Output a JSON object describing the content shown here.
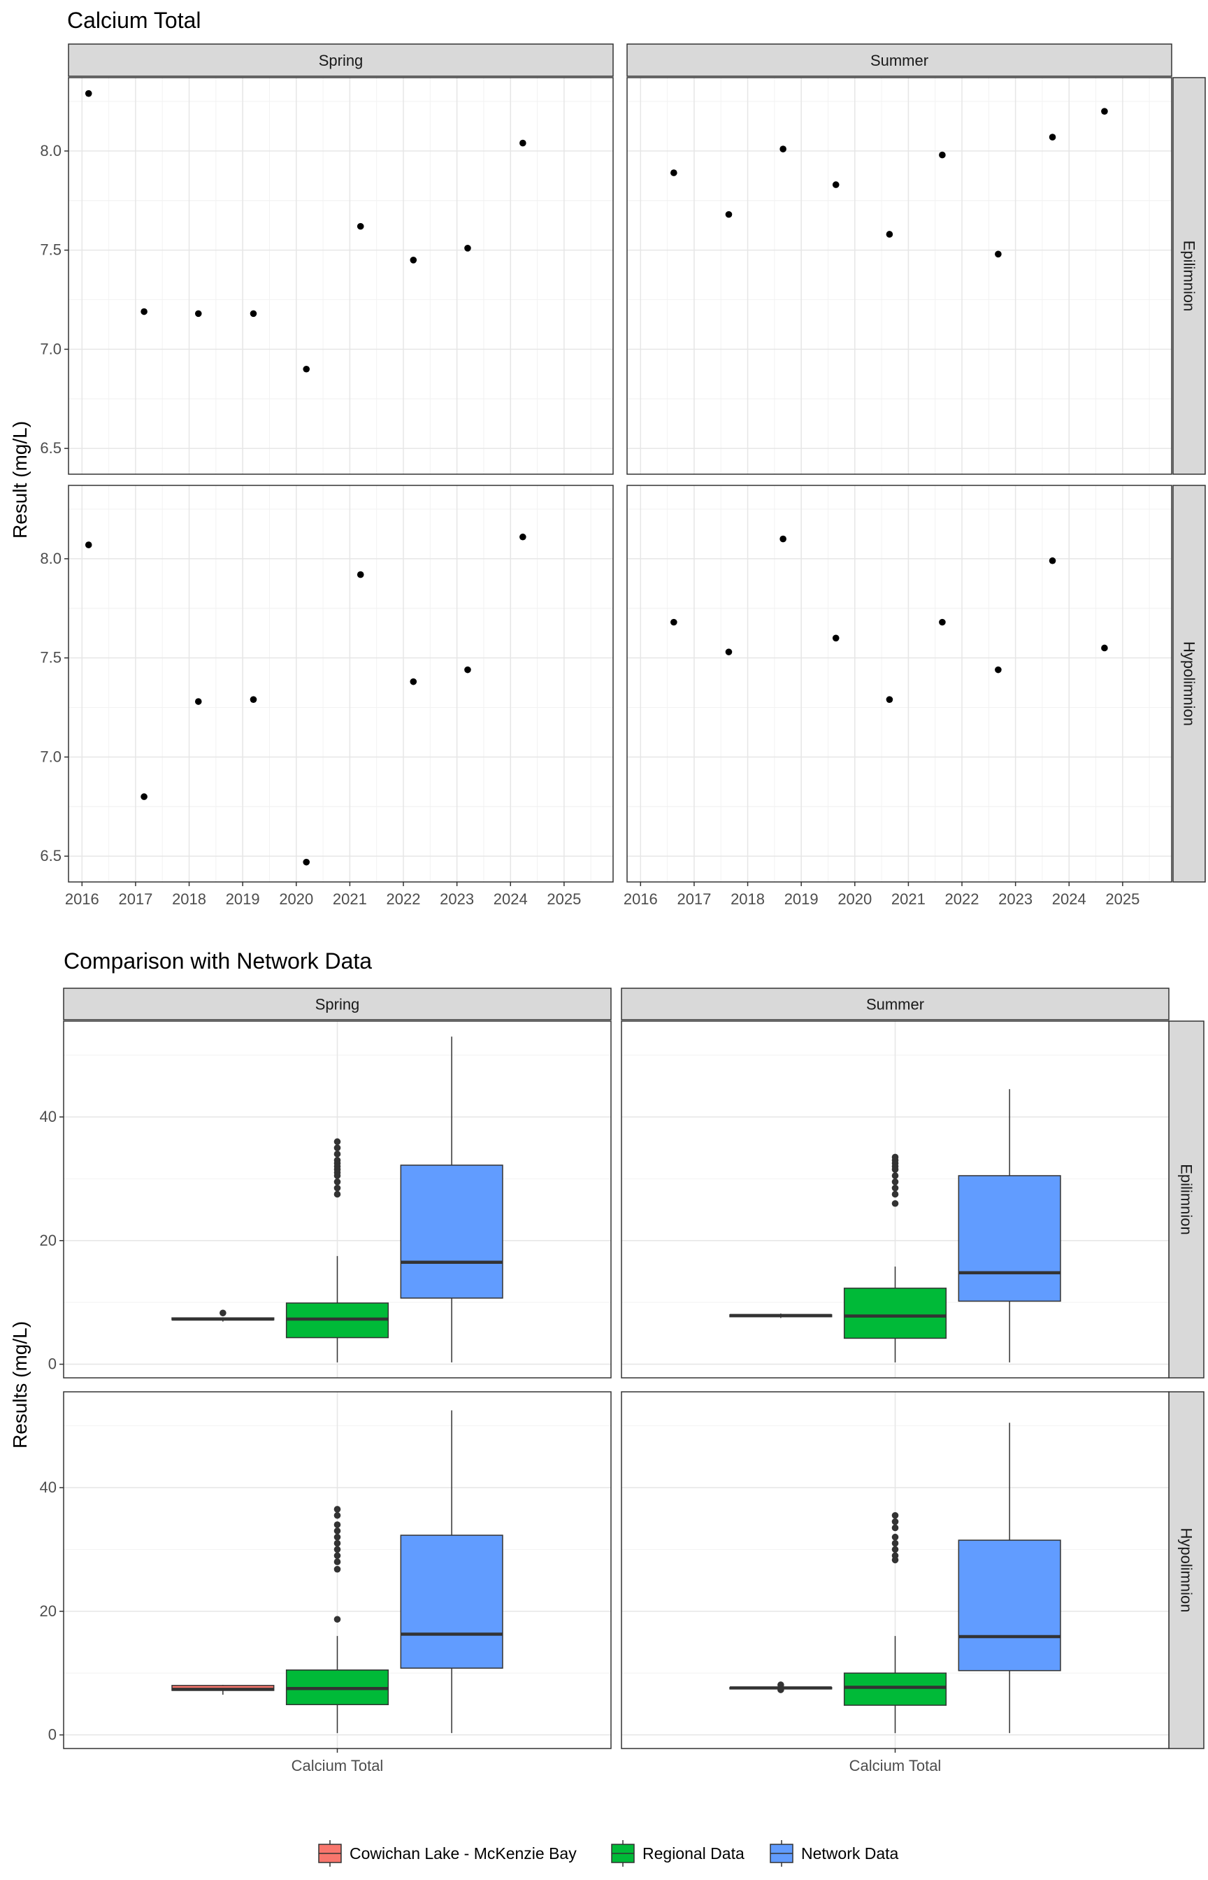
{
  "chart_data": [
    {
      "type": "scatter",
      "title": "Calcium Total",
      "xlabel": "",
      "ylabel": "Result (mg/L)",
      "facet_columns": [
        "Spring",
        "Summer"
      ],
      "facet_rows": [
        "Epilimnion",
        "Hypolimnion"
      ],
      "x_ticks": [
        "2016",
        "2017",
        "2018",
        "2019",
        "2020",
        "2021",
        "2022",
        "2023",
        "2024",
        "2025"
      ],
      "y_ticks": [
        "6.5",
        "7.0",
        "7.5",
        "8.0"
      ],
      "xlim": [
        "2015-10-01",
        "2025-12-01"
      ],
      "ylim": [
        6.37,
        8.37
      ],
      "grid": true,
      "panels": [
        {
          "column": "Spring",
          "row": "Epilimnion",
          "points": [
            {
              "x": "2016-02-15",
              "y": 8.29
            },
            {
              "x": "2017-02-28",
              "y": 7.19
            },
            {
              "x": "2018-03-05",
              "y": 7.18
            },
            {
              "x": "2019-03-15",
              "y": 7.18
            },
            {
              "x": "2020-03-10",
              "y": 6.9
            },
            {
              "x": "2021-03-15",
              "y": 7.62
            },
            {
              "x": "2022-03-10",
              "y": 7.45
            },
            {
              "x": "2023-03-15",
              "y": 7.51
            },
            {
              "x": "2024-03-25",
              "y": 8.04
            }
          ]
        },
        {
          "column": "Summer",
          "row": "Epilimnion",
          "points": [
            {
              "x": "2016-08-15",
              "y": 7.89
            },
            {
              "x": "2017-08-25",
              "y": 7.68
            },
            {
              "x": "2018-08-30",
              "y": 8.01
            },
            {
              "x": "2019-08-25",
              "y": 7.83
            },
            {
              "x": "2020-08-25",
              "y": 7.58
            },
            {
              "x": "2021-08-20",
              "y": 7.98
            },
            {
              "x": "2022-09-05",
              "y": 7.48
            },
            {
              "x": "2023-09-10",
              "y": 8.07
            },
            {
              "x": "2024-08-30",
              "y": 8.2
            }
          ]
        },
        {
          "column": "Spring",
          "row": "Hypolimnion",
          "points": [
            {
              "x": "2016-02-15",
              "y": 8.07
            },
            {
              "x": "2017-02-28",
              "y": 6.8
            },
            {
              "x": "2018-03-05",
              "y": 7.28
            },
            {
              "x": "2019-03-15",
              "y": 7.29
            },
            {
              "x": "2020-03-10",
              "y": 6.47
            },
            {
              "x": "2021-03-15",
              "y": 7.92
            },
            {
              "x": "2022-03-10",
              "y": 7.38
            },
            {
              "x": "2023-03-15",
              "y": 7.44
            },
            {
              "x": "2024-03-25",
              "y": 8.11
            }
          ]
        },
        {
          "column": "Summer",
          "row": "Hypolimnion",
          "points": [
            {
              "x": "2016-08-15",
              "y": 7.68
            },
            {
              "x": "2017-08-25",
              "y": 7.53
            },
            {
              "x": "2018-08-30",
              "y": 8.1
            },
            {
              "x": "2019-08-25",
              "y": 7.6
            },
            {
              "x": "2020-08-25",
              "y": 7.29
            },
            {
              "x": "2021-08-20",
              "y": 7.68
            },
            {
              "x": "2022-09-05",
              "y": 7.44
            },
            {
              "x": "2023-09-10",
              "y": 7.99
            },
            {
              "x": "2024-08-30",
              "y": 7.55
            }
          ]
        }
      ]
    },
    {
      "type": "box",
      "title": "Comparison with Network Data",
      "xlabel": "",
      "ylabel": "Results (mg/L)",
      "facet_columns": [
        "Spring",
        "Summer"
      ],
      "facet_rows": [
        "Epilimnion",
        "Hypolimnion"
      ],
      "category": "Calcium Total",
      "y_ticks": [
        "0",
        "20",
        "40"
      ],
      "ylim": [
        -2.2,
        55.5
      ],
      "grid": true,
      "legend_position": "bottom",
      "series": [
        {
          "name": "Cowichan Lake - McKenzie Bay",
          "color": "#F8766D"
        },
        {
          "name": "Regional Data",
          "color": "#00BA38"
        },
        {
          "name": "Network Data",
          "color": "#619CFF"
        }
      ],
      "panels": [
        {
          "column": "Spring",
          "row": "Epilimnion",
          "boxes": [
            {
              "series": "Cowichan Lake - McKenzie Bay",
              "min": 6.9,
              "q1": 7.18,
              "median": 7.3,
              "q3": 7.5,
              "max": 7.6,
              "outliers": [
                8.29
              ]
            },
            {
              "series": "Regional Data",
              "min": 0.3,
              "q1": 4.3,
              "median": 7.3,
              "q3": 9.9,
              "max": 17.5,
              "outliers": [
                27.5,
                28.5,
                29.5,
                30.5,
                31,
                31.5,
                32,
                32.5,
                33,
                34,
                35,
                36
              ]
            },
            {
              "series": "Network Data",
              "min": 0.3,
              "q1": 10.7,
              "median": 16.5,
              "q3": 32.2,
              "max": 53.0,
              "outliers": []
            }
          ]
        },
        {
          "column": "Summer",
          "row": "Epilimnion",
          "boxes": [
            {
              "series": "Cowichan Lake - McKenzie Bay",
              "min": 7.48,
              "q1": 7.68,
              "median": 7.89,
              "q3": 8.0,
              "max": 8.2,
              "outliers": []
            },
            {
              "series": "Regional Data",
              "min": 0.3,
              "q1": 4.2,
              "median": 7.8,
              "q3": 12.3,
              "max": 15.8,
              "outliers": [
                26,
                27.5,
                28.5,
                29.5,
                30.5,
                31.5,
                32,
                32.5,
                33,
                33.5
              ]
            },
            {
              "series": "Network Data",
              "min": 0.3,
              "q1": 10.2,
              "median": 14.8,
              "q3": 30.5,
              "max": 44.5,
              "outliers": []
            }
          ]
        },
        {
          "column": "Spring",
          "row": "Hypolimnion",
          "boxes": [
            {
              "series": "Cowichan Lake - McKenzie Bay",
              "min": 6.5,
              "q1": 7.2,
              "median": 7.38,
              "q3": 8.0,
              "max": 8.1,
              "outliers": []
            },
            {
              "series": "Regional Data",
              "min": 0.3,
              "q1": 4.9,
              "median": 7.5,
              "q3": 10.5,
              "max": 16.0,
              "outliers": [
                18.7,
                26.8,
                28,
                29,
                30,
                31,
                32,
                33,
                34,
                35.5,
                36.5
              ]
            },
            {
              "series": "Network Data",
              "min": 0.3,
              "q1": 10.8,
              "median": 16.3,
              "q3": 32.3,
              "max": 52.5,
              "outliers": []
            }
          ]
        },
        {
          "column": "Summer",
          "row": "Hypolimnion",
          "boxes": [
            {
              "series": "Cowichan Lake - McKenzie Bay",
              "min": 7.29,
              "q1": 7.44,
              "median": 7.6,
              "q3": 7.68,
              "max": 7.99,
              "outliers": [
                8.1,
                7.3
              ]
            },
            {
              "series": "Regional Data",
              "min": 0.3,
              "q1": 4.8,
              "median": 7.7,
              "q3": 10.0,
              "max": 16.0,
              "outliers": [
                28.3,
                29,
                30,
                31,
                32,
                33.5,
                34.5,
                35.5
              ]
            },
            {
              "series": "Network Data",
              "min": 0.3,
              "q1": 10.4,
              "median": 15.9,
              "q3": 31.5,
              "max": 50.5,
              "outliers": []
            }
          ]
        }
      ]
    }
  ]
}
